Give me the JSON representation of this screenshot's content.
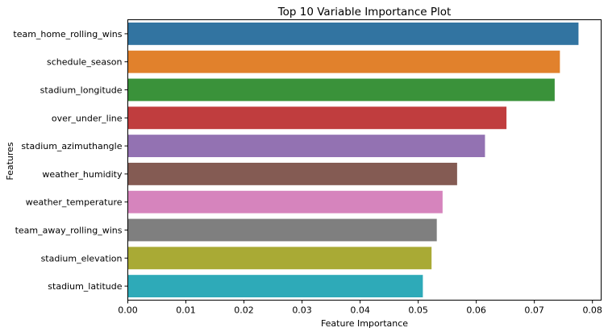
{
  "chart_data": {
    "type": "bar",
    "orientation": "horizontal",
    "title": "Top 10 Variable Importance Plot",
    "xlabel": "Feature Importance",
    "ylabel": "Features",
    "xlim": [
      0,
      0.0815
    ],
    "xticks": [
      0.0,
      0.01,
      0.02,
      0.03,
      0.04,
      0.05,
      0.06,
      0.07,
      0.08
    ],
    "xtick_labels": [
      "0.00",
      "0.01",
      "0.02",
      "0.03",
      "0.04",
      "0.05",
      "0.06",
      "0.07",
      "0.08"
    ],
    "grid": false,
    "legend": false,
    "categories": [
      "team_home_rolling_wins",
      "schedule_season",
      "stadium_longitude",
      "over_under_line",
      "stadium_azimuthangle",
      "weather_humidity",
      "weather_temperature",
      "team_away_rolling_wins",
      "stadium_elevation",
      "stadium_latitude"
    ],
    "values": [
      0.0776,
      0.0744,
      0.0735,
      0.0652,
      0.0615,
      0.0567,
      0.0542,
      0.0532,
      0.0523,
      0.0508
    ],
    "colors": [
      "#3274a1",
      "#e1812c",
      "#3a923a",
      "#c03d3e",
      "#9372b2",
      "#845b53",
      "#d684bd",
      "#7f7f7f",
      "#a9aa35",
      "#2eaab8"
    ]
  }
}
